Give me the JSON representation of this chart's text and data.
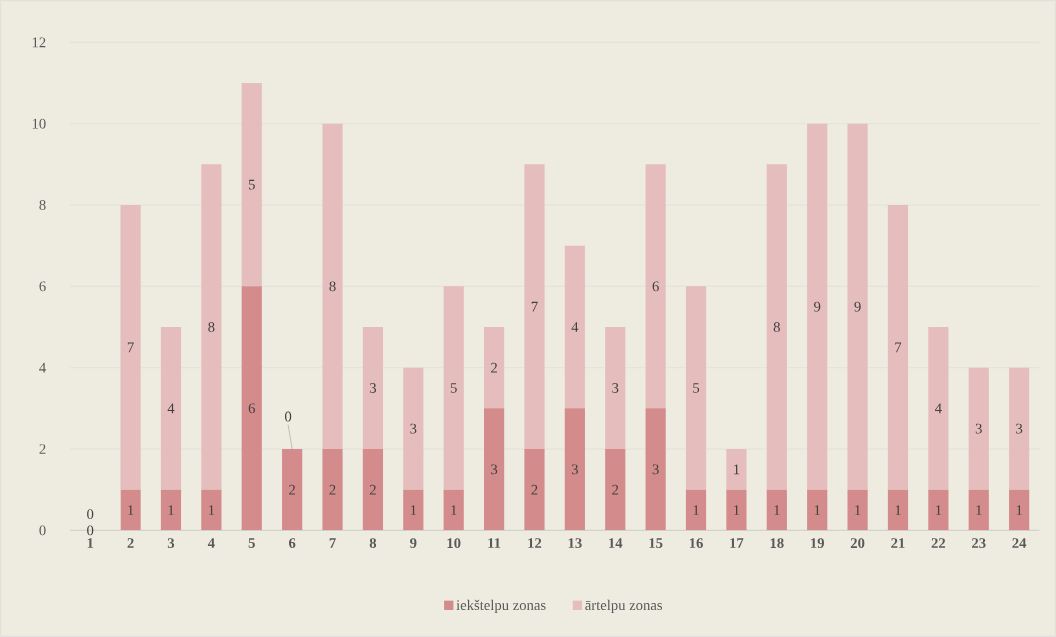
{
  "chart_data": {
    "type": "bar",
    "stacked": true,
    "categories": [
      "1",
      "2",
      "3",
      "4",
      "5",
      "6",
      "7",
      "8",
      "9",
      "10",
      "11",
      "12",
      "13",
      "14",
      "15",
      "16",
      "17",
      "18",
      "19",
      "20",
      "21",
      "22",
      "23",
      "24"
    ],
    "series": [
      {
        "name": "iekštelpu zonas",
        "color": "#d48b8b",
        "values": [
          0,
          1,
          1,
          1,
          6,
          2,
          2,
          2,
          1,
          1,
          3,
          2,
          3,
          2,
          3,
          1,
          1,
          1,
          1,
          1,
          1,
          1,
          1,
          1
        ]
      },
      {
        "name": "ārtelpu zonas",
        "color": "#e6bdbd",
        "values": [
          0,
          7,
          4,
          8,
          5,
          0,
          8,
          3,
          3,
          5,
          2,
          7,
          4,
          3,
          6,
          5,
          1,
          8,
          9,
          9,
          7,
          4,
          3,
          3
        ]
      }
    ],
    "ylim": [
      0,
      12
    ],
    "yticks": [
      0,
      2,
      4,
      6,
      8,
      10,
      12
    ],
    "grid": "y",
    "legend": "bottom",
    "data_labels": true
  }
}
